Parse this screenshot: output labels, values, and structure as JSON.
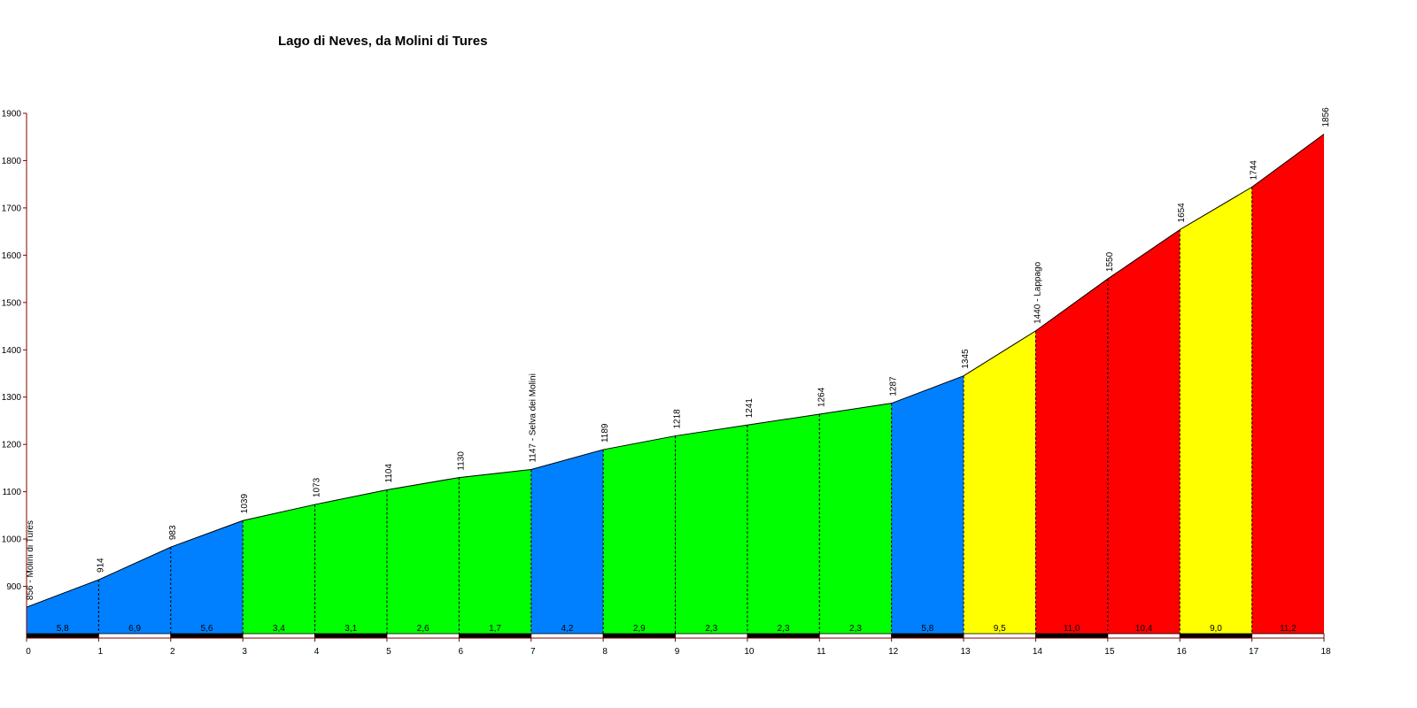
{
  "chart_data": {
    "type": "area",
    "title": "Lago di Neves, da Molini di Tures",
    "xlabel": "",
    "ylabel": "",
    "xlim": [
      0,
      18
    ],
    "ylim": [
      800,
      1900
    ],
    "y_ticks": [
      900,
      1000,
      1100,
      1200,
      1300,
      1400,
      1500,
      1600,
      1700,
      1800,
      1900
    ],
    "x_ticks": [
      0,
      1,
      2,
      3,
      4,
      5,
      6,
      7,
      8,
      9,
      10,
      11,
      12,
      13,
      14,
      15,
      16,
      17,
      18
    ],
    "x": [
      0,
      1,
      2,
      3,
      4,
      5,
      6,
      7,
      8,
      9,
      10,
      11,
      12,
      13,
      14,
      15,
      16,
      17,
      18
    ],
    "elevations": [
      856,
      914,
      983,
      1039,
      1073,
      1104,
      1130,
      1147,
      1189,
      1218,
      1241,
      1264,
      1287,
      1345,
      1440,
      1550,
      1654,
      1744,
      1856
    ],
    "point_labels": [
      "856 - Molini di Tures",
      "914",
      "983",
      "1039",
      "1073",
      "1104",
      "1130",
      "1147 - Selva dei Molini",
      "1189",
      "1218",
      "1241",
      "1264",
      "1287",
      "1345",
      "1440 - Lappago",
      "1550",
      "1654",
      "1744",
      "1856"
    ],
    "gradients": [
      "5,8",
      "6,9",
      "5,6",
      "3,4",
      "3,1",
      "2,6",
      "1,7",
      "4,2",
      "2,9",
      "2,3",
      "2,3",
      "2,3",
      "5,8",
      "9,5",
      "11,0",
      "10,4",
      "9,0",
      "11,2"
    ],
    "segment_colors": [
      "#0080ff",
      "#0080ff",
      "#0080ff",
      "#00ff00",
      "#00ff00",
      "#00ff00",
      "#00ff00",
      "#0080ff",
      "#00ff00",
      "#00ff00",
      "#00ff00",
      "#00ff00",
      "#0080ff",
      "#ffff00",
      "#ff0000",
      "#ff0000",
      "#ffff00",
      "#ff0000"
    ],
    "axis_color": "#800000",
    "grid": false
  }
}
